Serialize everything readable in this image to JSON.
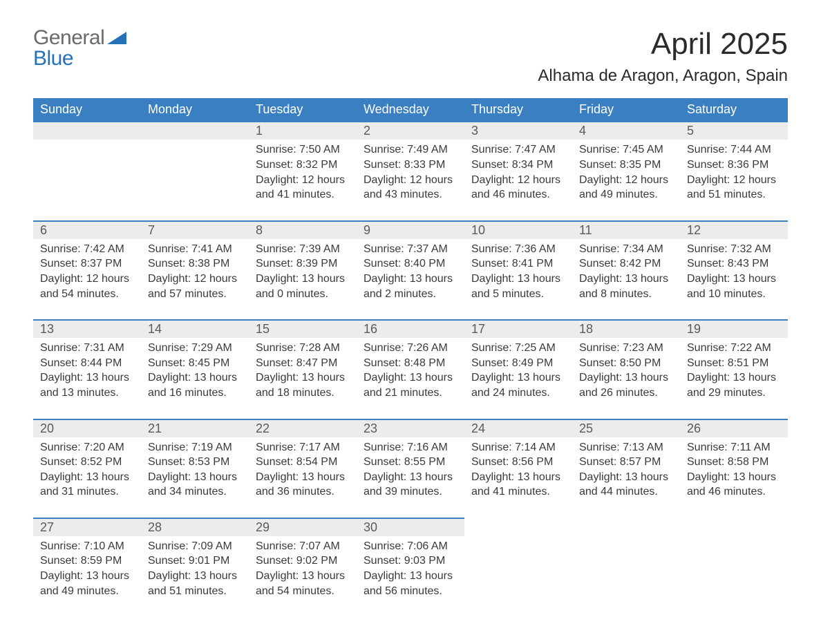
{
  "logo": {
    "word1": "General",
    "word2": "Blue",
    "word1_color": "#6a6a6a",
    "word2_color": "#2471b8",
    "triangle_color": "#2471b8"
  },
  "title": "April 2025",
  "subtitle": "Alhama de Aragon, Aragon, Spain",
  "colors": {
    "header_bg": "#3a7fc2",
    "header_text": "#ffffff",
    "daynum_bg": "#ececec",
    "daynum_border": "#3a7fc2",
    "body_text": "#3a3a3a",
    "daynum_text": "#5a5a5a",
    "page_bg": "#ffffff"
  },
  "fonts": {
    "title_size_pt": 33,
    "subtitle_size_pt": 18,
    "header_size_pt": 14,
    "daynum_size_pt": 14,
    "cell_size_pt": 12
  },
  "layout": {
    "cols": 7,
    "weeks": 5,
    "col_width_pct": 14.2857
  },
  "day_headers": [
    "Sunday",
    "Monday",
    "Tuesday",
    "Wednesday",
    "Thursday",
    "Friday",
    "Saturday"
  ],
  "weeks": [
    [
      {
        "day": "",
        "sunrise": "",
        "sunset": "",
        "daylight1": "",
        "daylight2": ""
      },
      {
        "day": "",
        "sunrise": "",
        "sunset": "",
        "daylight1": "",
        "daylight2": ""
      },
      {
        "day": "1",
        "sunrise": "Sunrise: 7:50 AM",
        "sunset": "Sunset: 8:32 PM",
        "daylight1": "Daylight: 12 hours",
        "daylight2": "and 41 minutes."
      },
      {
        "day": "2",
        "sunrise": "Sunrise: 7:49 AM",
        "sunset": "Sunset: 8:33 PM",
        "daylight1": "Daylight: 12 hours",
        "daylight2": "and 43 minutes."
      },
      {
        "day": "3",
        "sunrise": "Sunrise: 7:47 AM",
        "sunset": "Sunset: 8:34 PM",
        "daylight1": "Daylight: 12 hours",
        "daylight2": "and 46 minutes."
      },
      {
        "day": "4",
        "sunrise": "Sunrise: 7:45 AM",
        "sunset": "Sunset: 8:35 PM",
        "daylight1": "Daylight: 12 hours",
        "daylight2": "and 49 minutes."
      },
      {
        "day": "5",
        "sunrise": "Sunrise: 7:44 AM",
        "sunset": "Sunset: 8:36 PM",
        "daylight1": "Daylight: 12 hours",
        "daylight2": "and 51 minutes."
      }
    ],
    [
      {
        "day": "6",
        "sunrise": "Sunrise: 7:42 AM",
        "sunset": "Sunset: 8:37 PM",
        "daylight1": "Daylight: 12 hours",
        "daylight2": "and 54 minutes."
      },
      {
        "day": "7",
        "sunrise": "Sunrise: 7:41 AM",
        "sunset": "Sunset: 8:38 PM",
        "daylight1": "Daylight: 12 hours",
        "daylight2": "and 57 minutes."
      },
      {
        "day": "8",
        "sunrise": "Sunrise: 7:39 AM",
        "sunset": "Sunset: 8:39 PM",
        "daylight1": "Daylight: 13 hours",
        "daylight2": "and 0 minutes."
      },
      {
        "day": "9",
        "sunrise": "Sunrise: 7:37 AM",
        "sunset": "Sunset: 8:40 PM",
        "daylight1": "Daylight: 13 hours",
        "daylight2": "and 2 minutes."
      },
      {
        "day": "10",
        "sunrise": "Sunrise: 7:36 AM",
        "sunset": "Sunset: 8:41 PM",
        "daylight1": "Daylight: 13 hours",
        "daylight2": "and 5 minutes."
      },
      {
        "day": "11",
        "sunrise": "Sunrise: 7:34 AM",
        "sunset": "Sunset: 8:42 PM",
        "daylight1": "Daylight: 13 hours",
        "daylight2": "and 8 minutes."
      },
      {
        "day": "12",
        "sunrise": "Sunrise: 7:32 AM",
        "sunset": "Sunset: 8:43 PM",
        "daylight1": "Daylight: 13 hours",
        "daylight2": "and 10 minutes."
      }
    ],
    [
      {
        "day": "13",
        "sunrise": "Sunrise: 7:31 AM",
        "sunset": "Sunset: 8:44 PM",
        "daylight1": "Daylight: 13 hours",
        "daylight2": "and 13 minutes."
      },
      {
        "day": "14",
        "sunrise": "Sunrise: 7:29 AM",
        "sunset": "Sunset: 8:45 PM",
        "daylight1": "Daylight: 13 hours",
        "daylight2": "and 16 minutes."
      },
      {
        "day": "15",
        "sunrise": "Sunrise: 7:28 AM",
        "sunset": "Sunset: 8:47 PM",
        "daylight1": "Daylight: 13 hours",
        "daylight2": "and 18 minutes."
      },
      {
        "day": "16",
        "sunrise": "Sunrise: 7:26 AM",
        "sunset": "Sunset: 8:48 PM",
        "daylight1": "Daylight: 13 hours",
        "daylight2": "and 21 minutes."
      },
      {
        "day": "17",
        "sunrise": "Sunrise: 7:25 AM",
        "sunset": "Sunset: 8:49 PM",
        "daylight1": "Daylight: 13 hours",
        "daylight2": "and 24 minutes."
      },
      {
        "day": "18",
        "sunrise": "Sunrise: 7:23 AM",
        "sunset": "Sunset: 8:50 PM",
        "daylight1": "Daylight: 13 hours",
        "daylight2": "and 26 minutes."
      },
      {
        "day": "19",
        "sunrise": "Sunrise: 7:22 AM",
        "sunset": "Sunset: 8:51 PM",
        "daylight1": "Daylight: 13 hours",
        "daylight2": "and 29 minutes."
      }
    ],
    [
      {
        "day": "20",
        "sunrise": "Sunrise: 7:20 AM",
        "sunset": "Sunset: 8:52 PM",
        "daylight1": "Daylight: 13 hours",
        "daylight2": "and 31 minutes."
      },
      {
        "day": "21",
        "sunrise": "Sunrise: 7:19 AM",
        "sunset": "Sunset: 8:53 PM",
        "daylight1": "Daylight: 13 hours",
        "daylight2": "and 34 minutes."
      },
      {
        "day": "22",
        "sunrise": "Sunrise: 7:17 AM",
        "sunset": "Sunset: 8:54 PM",
        "daylight1": "Daylight: 13 hours",
        "daylight2": "and 36 minutes."
      },
      {
        "day": "23",
        "sunrise": "Sunrise: 7:16 AM",
        "sunset": "Sunset: 8:55 PM",
        "daylight1": "Daylight: 13 hours",
        "daylight2": "and 39 minutes."
      },
      {
        "day": "24",
        "sunrise": "Sunrise: 7:14 AM",
        "sunset": "Sunset: 8:56 PM",
        "daylight1": "Daylight: 13 hours",
        "daylight2": "and 41 minutes."
      },
      {
        "day": "25",
        "sunrise": "Sunrise: 7:13 AM",
        "sunset": "Sunset: 8:57 PM",
        "daylight1": "Daylight: 13 hours",
        "daylight2": "and 44 minutes."
      },
      {
        "day": "26",
        "sunrise": "Sunrise: 7:11 AM",
        "sunset": "Sunset: 8:58 PM",
        "daylight1": "Daylight: 13 hours",
        "daylight2": "and 46 minutes."
      }
    ],
    [
      {
        "day": "27",
        "sunrise": "Sunrise: 7:10 AM",
        "sunset": "Sunset: 8:59 PM",
        "daylight1": "Daylight: 13 hours",
        "daylight2": "and 49 minutes."
      },
      {
        "day": "28",
        "sunrise": "Sunrise: 7:09 AM",
        "sunset": "Sunset: 9:01 PM",
        "daylight1": "Daylight: 13 hours",
        "daylight2": "and 51 minutes."
      },
      {
        "day": "29",
        "sunrise": "Sunrise: 7:07 AM",
        "sunset": "Sunset: 9:02 PM",
        "daylight1": "Daylight: 13 hours",
        "daylight2": "and 54 minutes."
      },
      {
        "day": "30",
        "sunrise": "Sunrise: 7:06 AM",
        "sunset": "Sunset: 9:03 PM",
        "daylight1": "Daylight: 13 hours",
        "daylight2": "and 56 minutes."
      },
      {
        "day": "",
        "sunrise": "",
        "sunset": "",
        "daylight1": "",
        "daylight2": ""
      },
      {
        "day": "",
        "sunrise": "",
        "sunset": "",
        "daylight1": "",
        "daylight2": ""
      },
      {
        "day": "",
        "sunrise": "",
        "sunset": "",
        "daylight1": "",
        "daylight2": ""
      }
    ]
  ]
}
